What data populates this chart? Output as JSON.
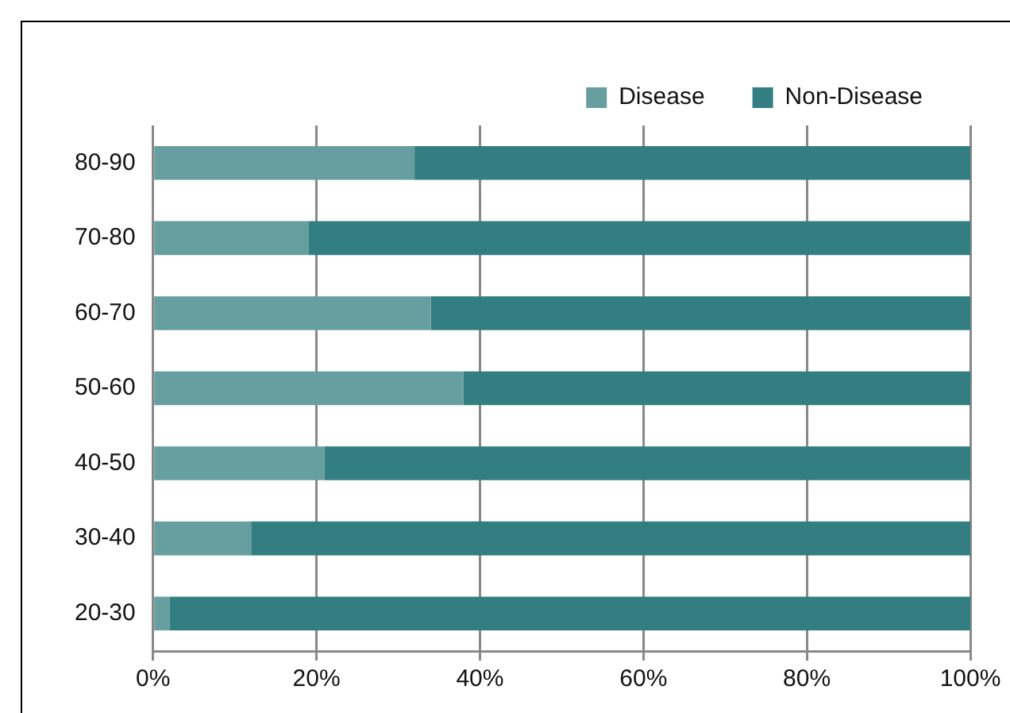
{
  "chart_data": {
    "type": "bar",
    "orientation": "horizontal",
    "stacked": true,
    "categories": [
      "80-90",
      "70-80",
      "60-70",
      "50-60",
      "40-50",
      "30-40",
      "20-30"
    ],
    "series": [
      {
        "name": "Disease",
        "color": "#679e9f",
        "values": [
          32,
          19,
          34,
          38,
          21,
          12,
          2
        ]
      },
      {
        "name": "Non-Disease",
        "color": "#337e80",
        "values": [
          68,
          81,
          66,
          62,
          79,
          88,
          98
        ]
      }
    ],
    "xlim": [
      0,
      100
    ],
    "xticks": [
      {
        "value": 0,
        "label": "0%"
      },
      {
        "value": 20,
        "label": "20%"
      },
      {
        "value": 40,
        "label": "40%"
      },
      {
        "value": 60,
        "label": "60%"
      },
      {
        "value": 80,
        "label": "80%"
      },
      {
        "value": 100,
        "label": "100%"
      }
    ],
    "grid": "x",
    "legend": "top right"
  }
}
